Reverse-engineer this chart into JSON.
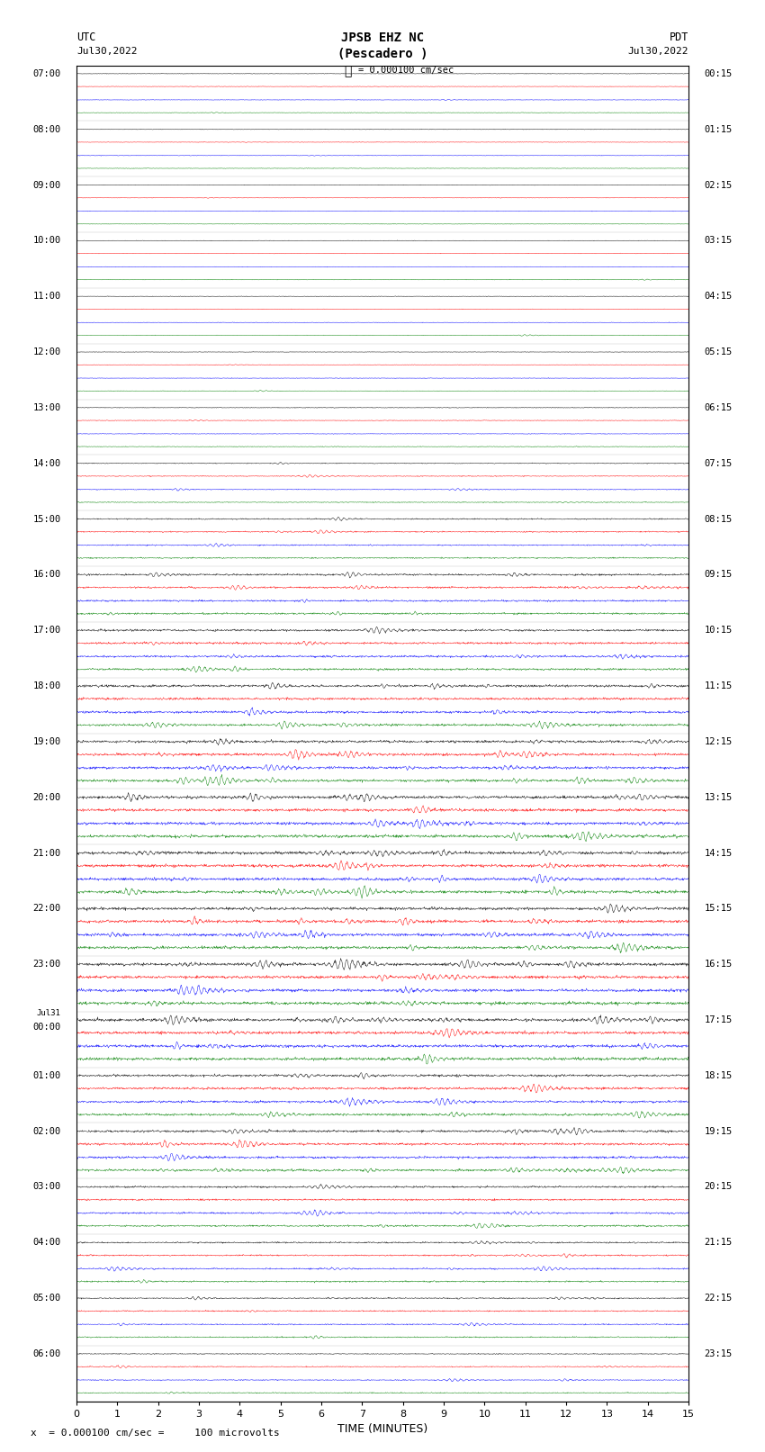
{
  "title_line1": "JPSB EHZ NC",
  "title_line2": "(Pescadero )",
  "scale_text": "= 0.000100 cm/sec",
  "bottom_label": "x  = 0.000100 cm/sec =     100 microvolts",
  "xlabel": "TIME (MINUTES)",
  "left_times": [
    "07:00",
    "08:00",
    "09:00",
    "10:00",
    "11:00",
    "12:00",
    "13:00",
    "14:00",
    "15:00",
    "16:00",
    "17:00",
    "18:00",
    "19:00",
    "20:00",
    "21:00",
    "22:00",
    "23:00",
    "Jul31\n00:00",
    "01:00",
    "02:00",
    "03:00",
    "04:00",
    "05:00",
    "06:00"
  ],
  "right_times": [
    "00:15",
    "01:15",
    "02:15",
    "03:15",
    "04:15",
    "05:15",
    "06:15",
    "07:15",
    "08:15",
    "09:15",
    "10:15",
    "11:15",
    "12:15",
    "13:15",
    "14:15",
    "15:15",
    "16:15",
    "17:15",
    "18:15",
    "19:15",
    "20:15",
    "21:15",
    "22:15",
    "23:15"
  ],
  "n_rows": 24,
  "traces_per_row": 4,
  "colors": [
    "black",
    "red",
    "blue",
    "green"
  ],
  "bg_color": "white",
  "xmin": 0,
  "xmax": 15,
  "xticks": [
    0,
    1,
    2,
    3,
    4,
    5,
    6,
    7,
    8,
    9,
    10,
    11,
    12,
    13,
    14,
    15
  ],
  "event_multipliers": [
    0.4,
    0.4,
    0.4,
    0.4,
    0.4,
    0.4,
    0.5,
    0.7,
    1.0,
    1.5,
    1.8,
    2.0,
    2.2,
    2.5,
    2.5,
    2.5,
    2.5,
    2.5,
    2.0,
    2.0,
    1.5,
    1.2,
    1.0,
    0.8
  ]
}
